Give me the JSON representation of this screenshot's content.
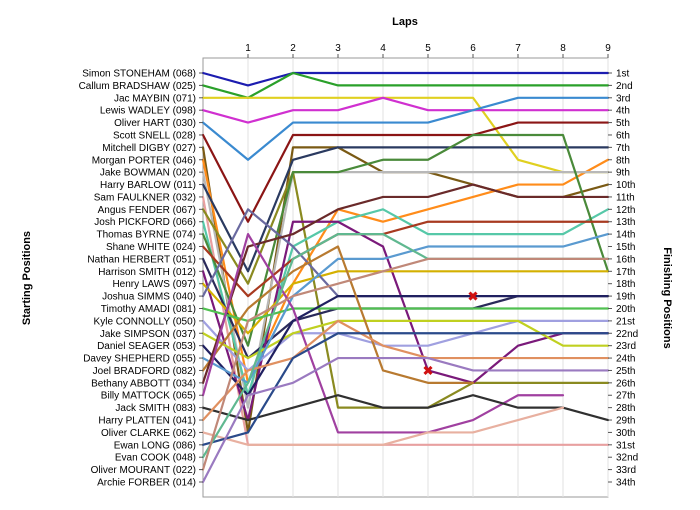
{
  "chart_data": {
    "type": "line",
    "title": "",
    "xlabel": "Laps",
    "ylabel_left": "Starting Positions",
    "ylabel_right": "Finishing Positions",
    "x_ticks": [
      1,
      2,
      3,
      4,
      5,
      6,
      7,
      8,
      9
    ],
    "xlim": [
      0,
      9
    ],
    "ylim": [
      1,
      34
    ],
    "grid": true,
    "legend": "none",
    "finishing_labels": [
      "1st",
      "2nd",
      "3rd",
      "4th",
      "5th",
      "6th",
      "7th",
      "8th",
      "9th",
      "10th",
      "11th",
      "12th",
      "13th",
      "14th",
      "15th",
      "16th",
      "17th",
      "18th",
      "19th",
      "20th",
      "21st",
      "22nd",
      "23rd",
      "24th",
      "25th",
      "26th",
      "27th",
      "28th",
      "29th",
      "30th",
      "31st",
      "32nd",
      "33rd",
      "34th"
    ],
    "series": [
      {
        "name": "Simon STONEHAM (068)",
        "color": "#1c1cb0",
        "values": [
          1,
          2,
          1,
          1,
          1,
          1,
          1,
          1,
          1,
          1
        ]
      },
      {
        "name": "Callum BRADSHAW (025)",
        "color": "#2aa02a",
        "values": [
          2,
          3,
          1,
          2,
          2,
          2,
          2,
          2,
          2,
          2
        ]
      },
      {
        "name": "Jac MAYBIN (071)",
        "color": "#e0d020",
        "values": [
          3,
          3,
          3,
          3,
          3,
          3,
          3,
          8,
          9,
          9
        ]
      },
      {
        "name": "Lewis WADLEY (098)",
        "color": "#d030d0",
        "values": [
          4,
          5,
          4,
          4,
          3,
          4,
          4,
          4,
          4,
          4
        ]
      },
      {
        "name": "Oliver HART (030)",
        "color": "#3a8ad0",
        "values": [
          5,
          8,
          5,
          5,
          5,
          5,
          4,
          3,
          3,
          3
        ]
      },
      {
        "name": "Scott SNELL (028)",
        "color": "#8b1515",
        "values": [
          6,
          13,
          6,
          6,
          6,
          6,
          6,
          5,
          5,
          5
        ]
      },
      {
        "name": "Mitchell DIGBY (027)",
        "color": "#7a5a14",
        "values": [
          7,
          30,
          7,
          7,
          9,
          9,
          10,
          11,
          11,
          10
        ]
      },
      {
        "name": "Morgan PORTER (046)",
        "color": "#ff8c1a",
        "values": [
          8,
          26,
          18,
          12,
          13,
          12,
          11,
          10,
          10,
          8
        ]
      },
      {
        "name": "Jake BOWMAN (020)",
        "color": "#b8b8b8",
        "values": [
          9,
          28,
          9,
          9,
          9,
          9,
          9,
          9,
          9,
          9
        ]
      },
      {
        "name": "Harry BARLOW (011)",
        "color": "#2a3a60",
        "values": [
          10,
          17,
          8,
          7,
          7,
          7,
          7,
          7,
          7,
          7
        ]
      },
      {
        "name": "Sam FAULKNER (032)",
        "color": "#e8a0a0",
        "values": [
          11,
          31,
          31,
          31,
          31,
          31,
          31,
          31,
          31,
          31
        ]
      },
      {
        "name": "Angus FENDER (067)",
        "color": "#8a8a20",
        "values": [
          12,
          18,
          9,
          28,
          28,
          28,
          26,
          26,
          26,
          26
        ]
      },
      {
        "name": "Josh PICKFORD (066)",
        "color": "#56c8a8",
        "values": [
          13,
          27,
          15,
          13,
          12,
          14,
          14,
          14,
          14,
          12
        ]
      },
      {
        "name": "Thomas BYRNE (074)",
        "color": "#4a8a3a",
        "values": [
          14,
          23,
          9,
          9,
          8,
          8,
          6,
          6,
          6,
          17
        ]
      },
      {
        "name": "Shane WHITE (024)",
        "color": "#a83a20",
        "values": [
          15,
          19,
          16,
          14,
          14,
          13,
          13,
          13,
          13,
          13
        ]
      },
      {
        "name": "Nathan HERBERT (051)",
        "color": "#2a2a5a",
        "values": [
          16,
          24,
          21,
          20,
          20,
          20,
          20,
          19,
          19,
          19
        ]
      },
      {
        "name": "Harrison SMITH (012)",
        "color": "#7a1a7a",
        "values": [
          17,
          29,
          13,
          13,
          15,
          25,
          26,
          23,
          22,
          22
        ]
      },
      {
        "name": "Henry LAWS (097)",
        "color": "#d4b000",
        "values": [
          18,
          22,
          18,
          17,
          17,
          17,
          17,
          17,
          17,
          17
        ]
      },
      {
        "name": "Joshua SIMMS (040)",
        "color": "#6a6aa0",
        "values": [
          19,
          12,
          15,
          19,
          19,
          19,
          19
        ]
      },
      {
        "name": "Timothy AMADI (081)",
        "color": "#50c050",
        "values": [
          20,
          21,
          20,
          20,
          20,
          20,
          20,
          20,
          20,
          20
        ]
      },
      {
        "name": "Kyle CONNOLLY (050)",
        "color": "#a0a0e0",
        "values": [
          21,
          25,
          22,
          22,
          23,
          23,
          22,
          21,
          21,
          21
        ]
      },
      {
        "name": "Jake SIMPSON (037)",
        "color": "#c0d020",
        "values": [
          22,
          24,
          22,
          21,
          21,
          21,
          21,
          21,
          23,
          23
        ]
      },
      {
        "name": "Daniel SEAGER (053)",
        "color": "#202060",
        "values": [
          23,
          27,
          21,
          19,
          19,
          19,
          19,
          19,
          19,
          19
        ]
      },
      {
        "name": "Davey SHEPHERD (055)",
        "color": "#5a9ad0",
        "values": [
          24,
          26,
          19,
          16,
          16,
          15,
          15,
          15,
          15,
          14
        ]
      },
      {
        "name": "Joel BRADFORD (082)",
        "color": "#b87a30",
        "values": [
          25,
          20,
          17,
          15,
          25,
          26,
          26
        ]
      },
      {
        "name": "Bethany ABBOTT (034)",
        "color": "#6a2a2a",
        "values": [
          26,
          15,
          14,
          12,
          11,
          11,
          10,
          11,
          11,
          11
        ]
      },
      {
        "name": "Billy MATTOCK (065)",
        "color": "#a040a0",
        "values": [
          27,
          14,
          20,
          30,
          30,
          30,
          29,
          27,
          27
        ]
      },
      {
        "name": "Jack SMITH (083)",
        "color": "#303030",
        "values": [
          28,
          29,
          28,
          27,
          28,
          28,
          27,
          28,
          28,
          29
        ]
      },
      {
        "name": "Harry PLATTEN (041)",
        "color": "#e09060",
        "values": [
          29,
          25,
          24,
          21,
          23,
          24,
          24,
          24,
          24,
          24
        ]
      },
      {
        "name": "Oliver CLARKE (062)",
        "color": "#e8b0a0",
        "values": [
          30,
          31,
          31,
          31,
          31,
          30,
          30,
          29,
          28
        ]
      },
      {
        "name": "Ewan LONG (086)",
        "color": "#2a4a8a",
        "values": [
          31,
          30,
          24,
          22,
          22,
          22,
          22,
          22,
          22,
          22
        ]
      },
      {
        "name": "Evan COOK (048)",
        "color": "#60b890",
        "values": [
          32,
          26,
          16,
          14,
          14,
          16,
          16,
          16,
          16,
          16
        ]
      },
      {
        "name": "Oliver MOURANT (022)",
        "color": "#c08878",
        "values": [
          33,
          21,
          19,
          18,
          17,
          16,
          16,
          16,
          16,
          16
        ]
      },
      {
        "name": "Archie FORBER (014)",
        "color": "#9a7ac0",
        "values": [
          34,
          27,
          26,
          24,
          24,
          24,
          25,
          25,
          25,
          25
        ]
      }
    ],
    "retired_markers": [
      {
        "lap": 6,
        "position": 19
      },
      {
        "lap": 5,
        "position": 25
      }
    ]
  }
}
